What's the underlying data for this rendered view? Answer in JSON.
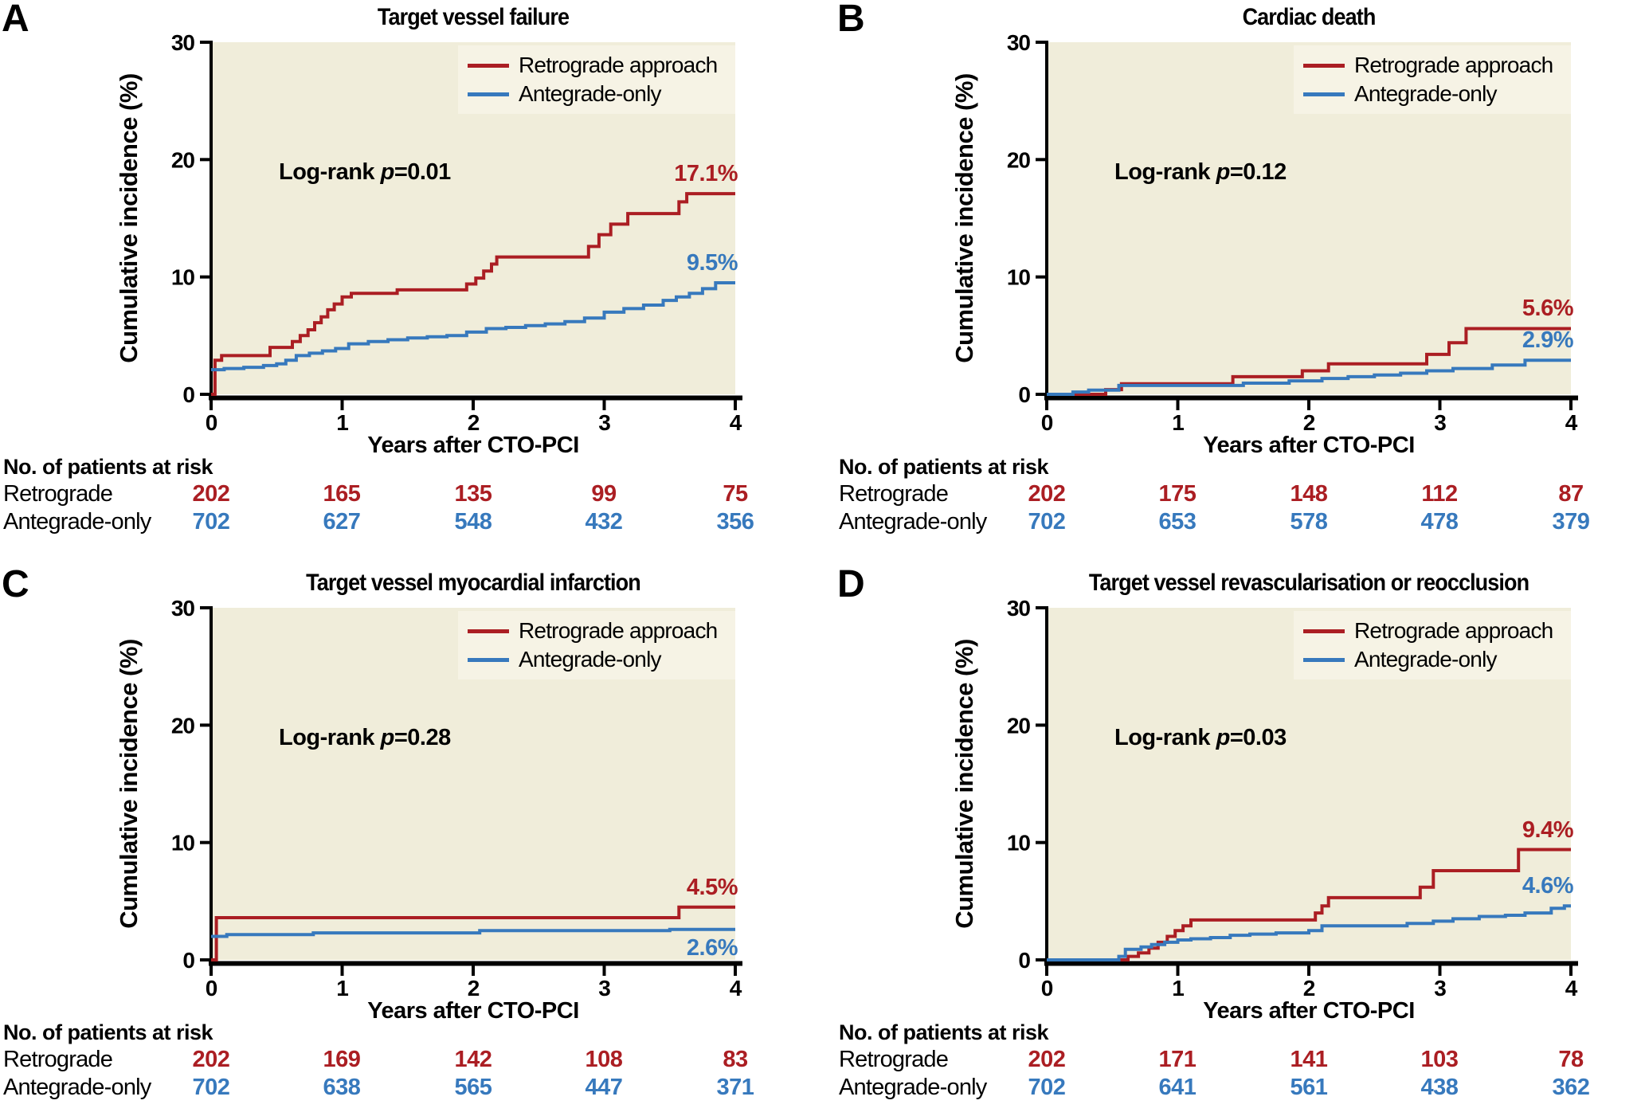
{
  "figure": {
    "y_axis_label": "Cumulative incidence (%)",
    "x_axis_label": "Years after CTO-PCI",
    "risk_table_header": "No. of patients at risk",
    "logrank_prefix": "Log-rank",
    "logrank_p_symbol": "p",
    "risk_rows": [
      "Retrograde",
      "Antegrade-only"
    ],
    "legend": [
      {
        "name": "Retrograde approach",
        "color": "#ab1e23"
      },
      {
        "name": "Antegrade-only",
        "color": "#3779bd"
      }
    ],
    "colors": {
      "retrograde": "#ab1e23",
      "antegrade": "#3779bd",
      "plot_background": "#f0edda",
      "legend_background": "#f6f3e5",
      "axis": "#000000",
      "text": "#000000"
    }
  },
  "chart_data": [
    {
      "type": "step-line",
      "panel_label": "A",
      "title": "Target vessel failure",
      "xlabel": "Years after CTO-PCI",
      "ylabel": "Cumulative incidence (%)",
      "xlim": [
        0,
        4
      ],
      "ylim": [
        0,
        30
      ],
      "x_ticks": [
        0,
        1,
        2,
        3,
        4
      ],
      "y_ticks": [
        0,
        10,
        20,
        30
      ],
      "grid": false,
      "legend_position": "top-right",
      "log_rank_text": "Log-rank p=0.01",
      "p_display": "=0.01",
      "series": [
        {
          "name": "Retrograde approach",
          "color": "#ab1e23",
          "end_label": "17.1%",
          "end_label_position": "above",
          "points": [
            [
              0,
              0
            ],
            [
              0.03,
              2.9
            ],
            [
              0.08,
              3.3
            ],
            [
              0.45,
              4.0
            ],
            [
              0.62,
              4.5
            ],
            [
              0.68,
              5.0
            ],
            [
              0.74,
              5.5
            ],
            [
              0.79,
              6.1
            ],
            [
              0.84,
              6.6
            ],
            [
              0.89,
              7.2
            ],
            [
              0.94,
              7.7
            ],
            [
              1.0,
              8.3
            ],
            [
              1.07,
              8.6
            ],
            [
              1.42,
              8.9
            ],
            [
              1.95,
              9.4
            ],
            [
              2.02,
              9.9
            ],
            [
              2.08,
              10.5
            ],
            [
              2.14,
              11.1
            ],
            [
              2.18,
              11.7
            ],
            [
              2.88,
              12.6
            ],
            [
              2.96,
              13.6
            ],
            [
              3.05,
              14.5
            ],
            [
              3.18,
              15.4
            ],
            [
              3.57,
              16.4
            ],
            [
              3.63,
              17.1
            ]
          ]
        },
        {
          "name": "Antegrade-only",
          "color": "#3779bd",
          "end_label": "9.5%",
          "end_label_position": "above",
          "points": [
            [
              0,
              2.1
            ],
            [
              0.1,
              2.2
            ],
            [
              0.25,
              2.3
            ],
            [
              0.4,
              2.45
            ],
            [
              0.5,
              2.6
            ],
            [
              0.57,
              2.9
            ],
            [
              0.65,
              3.3
            ],
            [
              0.75,
              3.5
            ],
            [
              0.85,
              3.7
            ],
            [
              0.95,
              3.9
            ],
            [
              1.05,
              4.3
            ],
            [
              1.2,
              4.5
            ],
            [
              1.35,
              4.65
            ],
            [
              1.5,
              4.8
            ],
            [
              1.65,
              4.9
            ],
            [
              1.8,
              5.0
            ],
            [
              1.95,
              5.3
            ],
            [
              2.1,
              5.6
            ],
            [
              2.25,
              5.7
            ],
            [
              2.4,
              5.85
            ],
            [
              2.55,
              6.0
            ],
            [
              2.7,
              6.2
            ],
            [
              2.85,
              6.5
            ],
            [
              3.0,
              7.0
            ],
            [
              3.15,
              7.3
            ],
            [
              3.3,
              7.6
            ],
            [
              3.45,
              8.0
            ],
            [
              3.55,
              8.3
            ],
            [
              3.65,
              8.6
            ],
            [
              3.75,
              9.0
            ],
            [
              3.85,
              9.5
            ]
          ]
        }
      ],
      "at_risk": {
        "retrograde": [
          202,
          165,
          135,
          99,
          75
        ],
        "antegrade": [
          702,
          627,
          548,
          432,
          356
        ]
      }
    },
    {
      "type": "step-line",
      "panel_label": "B",
      "title": "Cardiac death",
      "xlabel": "Years after CTO-PCI",
      "ylabel": "Cumulative incidence (%)",
      "xlim": [
        0,
        4
      ],
      "ylim": [
        0,
        30
      ],
      "x_ticks": [
        0,
        1,
        2,
        3,
        4
      ],
      "y_ticks": [
        0,
        10,
        20,
        30
      ],
      "grid": false,
      "legend_position": "top-right",
      "log_rank_text": "Log-rank p=0.12",
      "p_display": "=0.12",
      "series": [
        {
          "name": "Retrograde approach",
          "color": "#ab1e23",
          "end_label": "5.6%",
          "end_label_position": "above",
          "points": [
            [
              0,
              0
            ],
            [
              0.45,
              0.4
            ],
            [
              0.57,
              0.9
            ],
            [
              1.42,
              1.5
            ],
            [
              1.95,
              2.0
            ],
            [
              2.15,
              2.6
            ],
            [
              2.9,
              3.4
            ],
            [
              3.07,
              4.4
            ],
            [
              3.2,
              5.6
            ]
          ]
        },
        {
          "name": "Antegrade-only",
          "color": "#3779bd",
          "end_label": "2.9%",
          "end_label_position": "above",
          "points": [
            [
              0,
              0
            ],
            [
              0.2,
              0.2
            ],
            [
              0.32,
              0.35
            ],
            [
              0.55,
              0.75
            ],
            [
              1.5,
              0.95
            ],
            [
              1.85,
              1.15
            ],
            [
              2.1,
              1.35
            ],
            [
              2.3,
              1.5
            ],
            [
              2.5,
              1.65
            ],
            [
              2.7,
              1.8
            ],
            [
              2.9,
              2.0
            ],
            [
              3.1,
              2.2
            ],
            [
              3.4,
              2.5
            ],
            [
              3.65,
              2.9
            ]
          ]
        }
      ],
      "at_risk": {
        "retrograde": [
          202,
          175,
          148,
          112,
          87
        ],
        "antegrade": [
          702,
          653,
          578,
          478,
          379
        ]
      }
    },
    {
      "type": "step-line",
      "panel_label": "C",
      "title": "Target vessel myocardial infarction",
      "xlabel": "Years after CTO-PCI",
      "ylabel": "Cumulative incidence (%)",
      "xlim": [
        0,
        4
      ],
      "ylim": [
        0,
        30
      ],
      "x_ticks": [
        0,
        1,
        2,
        3,
        4
      ],
      "y_ticks": [
        0,
        10,
        20,
        30
      ],
      "grid": false,
      "legend_position": "top-right",
      "log_rank_text": "Log-rank p=0.28",
      "p_display": "=0.28",
      "series": [
        {
          "name": "Retrograde approach",
          "color": "#ab1e23",
          "end_label": "4.5%",
          "end_label_position": "above",
          "points": [
            [
              0,
              0
            ],
            [
              0.04,
              3.6
            ],
            [
              3.57,
              4.5
            ]
          ]
        },
        {
          "name": "Antegrade-only",
          "color": "#3779bd",
          "end_label": "2.6%",
          "end_label_position": "below",
          "points": [
            [
              0,
              2.0
            ],
            [
              0.12,
              2.15
            ],
            [
              0.78,
              2.3
            ],
            [
              2.05,
              2.5
            ],
            [
              3.5,
              2.6
            ]
          ]
        }
      ],
      "at_risk": {
        "retrograde": [
          202,
          169,
          142,
          108,
          83
        ],
        "antegrade": [
          702,
          638,
          565,
          447,
          371
        ]
      }
    },
    {
      "type": "step-line",
      "panel_label": "D",
      "title": "Target vessel revascularisation or reocclusion",
      "xlabel": "Years after CTO-PCI",
      "ylabel": "Cumulative incidence (%)",
      "xlim": [
        0,
        4
      ],
      "ylim": [
        0,
        30
      ],
      "x_ticks": [
        0,
        1,
        2,
        3,
        4
      ],
      "y_ticks": [
        0,
        10,
        20,
        30
      ],
      "grid": false,
      "legend_position": "top-right",
      "log_rank_text": "Log-rank p=0.03",
      "p_display": "=0.03",
      "series": [
        {
          "name": "Retrograde approach",
          "color": "#ab1e23",
          "end_label": "9.4%",
          "end_label_position": "above",
          "points": [
            [
              0,
              0
            ],
            [
              0.62,
              0.3
            ],
            [
              0.7,
              0.6
            ],
            [
              0.78,
              1.0
            ],
            [
              0.85,
              1.5
            ],
            [
              0.92,
              2.0
            ],
            [
              0.98,
              2.5
            ],
            [
              1.04,
              2.9
            ],
            [
              1.1,
              3.4
            ],
            [
              2.05,
              4.0
            ],
            [
              2.1,
              4.6
            ],
            [
              2.15,
              5.3
            ],
            [
              2.85,
              6.2
            ],
            [
              2.95,
              7.6
            ],
            [
              3.6,
              9.4
            ]
          ]
        },
        {
          "name": "Antegrade-only",
          "color": "#3779bd",
          "end_label": "4.6%",
          "end_label_position": "above",
          "points": [
            [
              0,
              0
            ],
            [
              0.55,
              0.3
            ],
            [
              0.6,
              0.9
            ],
            [
              0.72,
              1.1
            ],
            [
              0.8,
              1.3
            ],
            [
              0.9,
              1.5
            ],
            [
              1.0,
              1.7
            ],
            [
              1.1,
              1.8
            ],
            [
              1.25,
              1.9
            ],
            [
              1.4,
              2.1
            ],
            [
              1.55,
              2.2
            ],
            [
              1.75,
              2.3
            ],
            [
              2.0,
              2.5
            ],
            [
              2.1,
              2.9
            ],
            [
              2.75,
              3.1
            ],
            [
              2.95,
              3.3
            ],
            [
              3.1,
              3.5
            ],
            [
              3.3,
              3.7
            ],
            [
              3.5,
              3.8
            ],
            [
              3.65,
              4.0
            ],
            [
              3.85,
              4.4
            ],
            [
              3.95,
              4.6
            ]
          ]
        }
      ],
      "at_risk": {
        "retrograde": [
          202,
          171,
          141,
          103,
          78
        ],
        "antegrade": [
          702,
          641,
          561,
          438,
          362
        ]
      }
    }
  ]
}
